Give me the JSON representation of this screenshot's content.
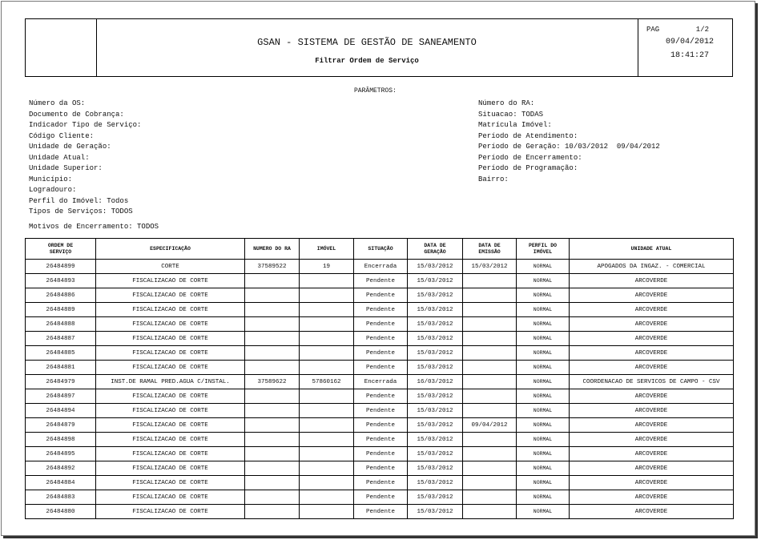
{
  "header": {
    "title": "GSAN - SISTEMA DE GESTÃO DE SANEAMENTO",
    "subtitle": "Filtrar Ordem de Serviço",
    "page_label": "PAG",
    "page": "1/2",
    "date": "09/04/2012",
    "time": "18:41:27"
  },
  "parameters": {
    "title": "PARÂMETROS:",
    "left": [
      "Número da OS:",
      "Documento de Cobrança:",
      "Indicador Tipo de Serviço:",
      "Código Cliente:",
      "Unidade de Geração:",
      "Unidade Atual:",
      "Unidade Superior:",
      "Município:",
      "Logradouro:",
      "Perfil do Imóvel: Todos",
      "Tipos de Serviços: TODOS"
    ],
    "right": [
      "Número do RA:",
      "Situacao: TODAS",
      "Matrícula Imóvel:",
      "Período de Atendimento:",
      "Período de Geração: 10/03/2012  09/04/2012",
      "Período de Encerramento:",
      "Período de Programação:",
      "Bairro:"
    ],
    "motivos": "Motivos de Encerramento: TODOS"
  },
  "table": {
    "columns": [
      [
        "ORDEM DE",
        "SERVIÇO"
      ],
      [
        "ESPECIFICAÇÃO"
      ],
      [
        "NUMERO DO RA"
      ],
      [
        "IMÓVEL"
      ],
      [
        "SITUAÇÃO"
      ],
      [
        "DATA DE",
        "GERAÇÃO"
      ],
      [
        "DATA DE",
        "EMISSÃO"
      ],
      [
        "PERFIL DO",
        "IMÓVEL"
      ],
      [
        "UNIDADE ATUAL"
      ]
    ],
    "rows": [
      [
        "26484899",
        "CORTE",
        "37589522",
        "19",
        "Encerrada",
        "15/03/2012",
        "15/03/2012",
        "NORMAL",
        "APOGADOS DA INGAZ. - COMERCIAL"
      ],
      [
        "26484893",
        "FISCALIZACAO DE CORTE",
        null,
        null,
        "Pendente",
        "15/03/2012",
        null,
        "NORMAL",
        "ARCOVERDE"
      ],
      [
        "26484886",
        "FISCALIZACAO DE CORTE",
        null,
        null,
        "Pendente",
        "15/03/2012",
        null,
        "NORMAL",
        "ARCOVERDE"
      ],
      [
        "26484889",
        "FISCALIZACAO DE CORTE",
        null,
        null,
        "Pendente",
        "15/03/2012",
        null,
        "NORMAL",
        "ARCOVERDE"
      ],
      [
        "26484888",
        "FISCALIZACAO DE CORTE",
        null,
        null,
        "Pendente",
        "15/03/2012",
        null,
        "NORMAL",
        "ARCOVERDE"
      ],
      [
        "26484887",
        "FISCALIZACAO DE CORTE",
        null,
        null,
        "Pendente",
        "15/03/2012",
        null,
        "NORMAL",
        "ARCOVERDE"
      ],
      [
        "26484885",
        "FISCALIZACAO DE CORTE",
        null,
        null,
        "Pendente",
        "15/03/2012",
        null,
        "NORMAL",
        "ARCOVERDE"
      ],
      [
        "26484881",
        "FISCALIZACAO DE CORTE",
        null,
        null,
        "Pendente",
        "15/03/2012",
        null,
        "NORMAL",
        "ARCOVERDE"
      ],
      [
        "26484979",
        "INST.DE RAMAL PRED.AGUA C/INSTAL.",
        "37589622",
        "57860162",
        "Encerrada",
        "16/03/2012",
        null,
        "NORMAL",
        "COORDENACAO DE SERVICOS DE CAMPO - CSV"
      ],
      [
        "26484897",
        "FISCALIZACAO DE CORTE",
        null,
        null,
        "Pendente",
        "15/03/2012",
        null,
        "NORMAL",
        "ARCOVERDE"
      ],
      [
        "26484894",
        "FISCALIZACAO DE CORTE",
        null,
        null,
        "Pendente",
        "15/03/2012",
        null,
        "NORMAL",
        "ARCOVERDE"
      ],
      [
        "26484879",
        "FISCALIZACAO DE CORTE",
        null,
        null,
        "Pendente",
        "15/03/2012",
        "09/04/2012",
        "NORMAL",
        "ARCOVERDE"
      ],
      [
        "26484898",
        "FISCALIZACAO DE CORTE",
        null,
        null,
        "Pendente",
        "15/03/2012",
        null,
        "NORMAL",
        "ARCOVERDE"
      ],
      [
        "26484895",
        "FISCALIZACAO DE CORTE",
        null,
        null,
        "Pendente",
        "15/03/2012",
        null,
        "NORMAL",
        "ARCOVERDE"
      ],
      [
        "26484892",
        "FISCALIZACAO DE CORTE",
        null,
        null,
        "Pendente",
        "15/03/2012",
        null,
        "NORMAL",
        "ARCOVERDE"
      ],
      [
        "26484884",
        "FISCALIZACAO DE CORTE",
        null,
        null,
        "Pendente",
        "15/03/2012",
        null,
        "NORMAL",
        "ARCOVERDE"
      ],
      [
        "26484883",
        "FISCALIZACAO DE CORTE",
        null,
        null,
        "Pendente",
        "15/03/2012",
        null,
        "NORMAL",
        "ARCOVERDE"
      ],
      [
        "26484880",
        "FISCALIZACAO DE CORTE",
        null,
        null,
        "Pendente",
        "15/03/2012",
        null,
        "NORMAL",
        "ARCOVERDE"
      ]
    ]
  }
}
